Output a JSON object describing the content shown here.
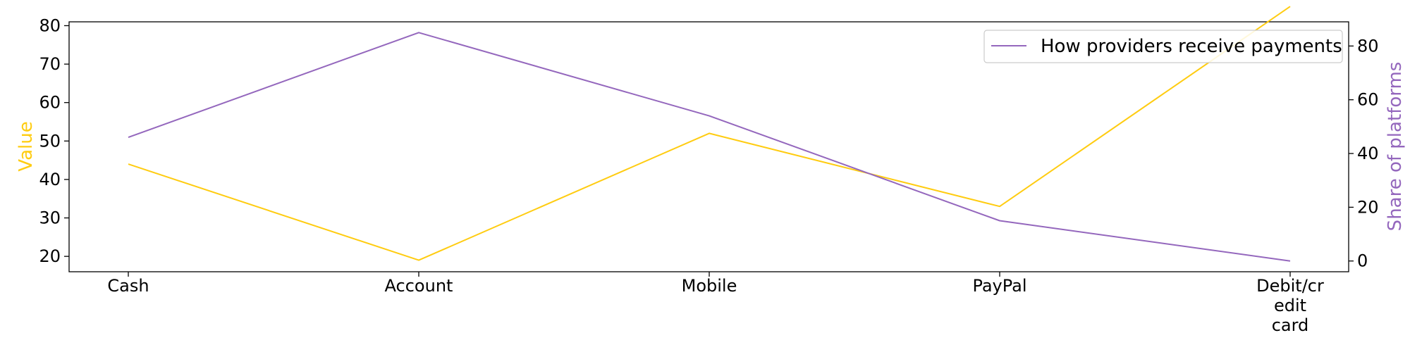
{
  "chart_data": {
    "type": "line",
    "categories": [
      "Cash",
      "Account",
      "Mobile",
      "PayPal",
      "Debit/credit card"
    ],
    "category_tick_labels": [
      [
        "Cash"
      ],
      [
        "Account"
      ],
      [
        "Mobile"
      ],
      [
        "PayPal"
      ],
      [
        "Debit/cr",
        "edit",
        "card"
      ]
    ],
    "series": [
      {
        "name": "",
        "axis": "left",
        "color": "#ffcc11",
        "values": [
          44,
          19,
          52,
          33,
          85
        ]
      },
      {
        "name": "How providers receive payments",
        "axis": "right",
        "color": "#9467bd",
        "values": [
          46,
          85,
          54,
          15,
          0
        ]
      }
    ],
    "ylabel_left": "Value",
    "ylabel_right": "Share of platforms",
    "ylim_left": [
      16,
      81
    ],
    "ylim_right": [
      -4,
      89
    ],
    "yticks_left": [
      20,
      30,
      40,
      50,
      60,
      70,
      80
    ],
    "yticks_right": [
      0,
      20,
      40,
      60,
      80
    ],
    "left_axis_color": "#ffcc11",
    "right_axis_color": "#9467bd",
    "grid": false,
    "legend_position": "top-right"
  }
}
